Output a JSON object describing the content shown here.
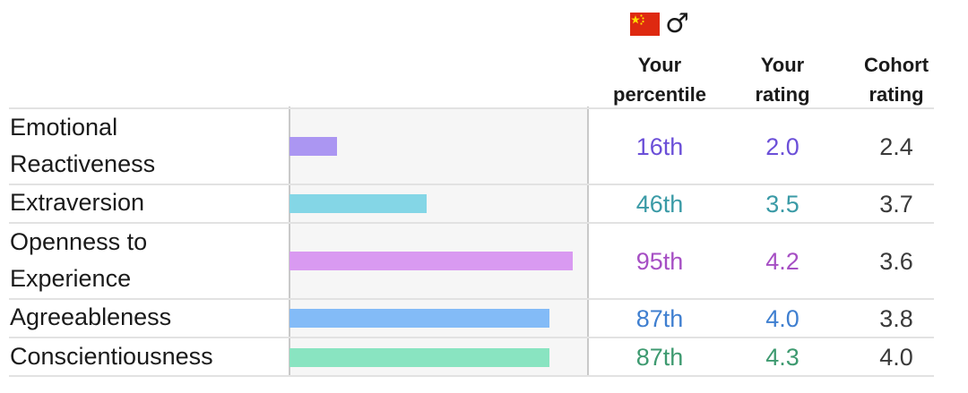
{
  "header": {
    "flag_icon": "china-flag-icon",
    "gender_icon": "♂",
    "col_percentile": [
      "Your",
      "percentile"
    ],
    "col_rating": [
      "Your",
      "rating"
    ],
    "col_cohort": [
      "Cohort",
      "rating"
    ]
  },
  "chart_data": {
    "type": "bar",
    "orientation": "horizontal",
    "categories": [
      "Emotional Reactiveness",
      "Extraversion",
      "Openness to Experience",
      "Agreeableness",
      "Conscientiousness"
    ],
    "values": [
      16,
      46,
      95,
      87,
      87
    ],
    "xlim": [
      0,
      100
    ],
    "colors": [
      "#ab96f2",
      "#84d6e6",
      "#d99af1",
      "#83bbf7",
      "#89e4c1"
    ],
    "rows": [
      {
        "trait_lines": [
          "Emotional",
          "Reactiveness"
        ],
        "percentile": "16th",
        "rating": "2.0",
        "cohort": "2.4",
        "text_color": "#6b4fd8"
      },
      {
        "trait_lines": [
          "Extraversion"
        ],
        "percentile": "46th",
        "rating": "3.5",
        "cohort": "3.7",
        "text_color": "#3a9aa6"
      },
      {
        "trait_lines": [
          "Openness to",
          "Experience"
        ],
        "percentile": "95th",
        "rating": "4.2",
        "cohort": "3.6",
        "text_color": "#a64fc4"
      },
      {
        "trait_lines": [
          "Agreeableness"
        ],
        "percentile": "87th",
        "rating": "4.0",
        "cohort": "3.8",
        "text_color": "#3f7fd0"
      },
      {
        "trait_lines": [
          "Conscientiousness"
        ],
        "percentile": "87th",
        "rating": "4.3",
        "cohort": "4.0",
        "text_color": "#3e9a70"
      }
    ],
    "cohort_text_color": "#3a3a3a"
  }
}
